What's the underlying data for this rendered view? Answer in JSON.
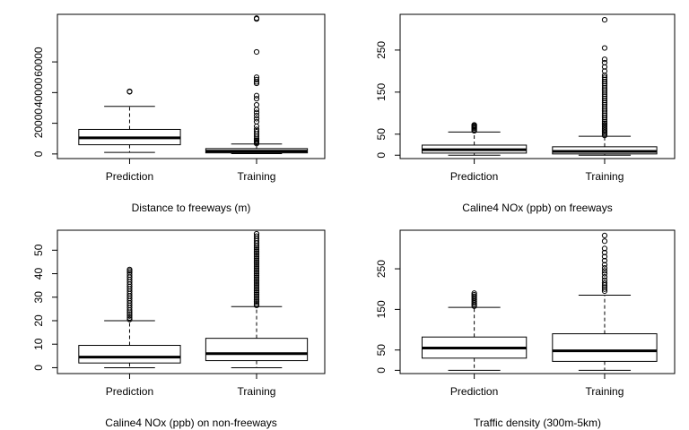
{
  "chart_data": [
    {
      "type": "boxplot",
      "xlabel": "Distance to freeways (m)",
      "categories": [
        "Prediction",
        "Training"
      ],
      "ylim": [
        -3000,
        91000
      ],
      "yticks": [
        0,
        20000,
        40000,
        60000
      ],
      "boxes": [
        {
          "whisker_low": 1000,
          "q1": 6000,
          "median": 10500,
          "q3": 16000,
          "whisker_high": 31000,
          "outliers": [
            40500,
            40800
          ]
        },
        {
          "whisker_low": 200,
          "q1": 700,
          "median": 1800,
          "q3": 3500,
          "whisker_high": 6500,
          "outliers": [
            6800,
            7500,
            8200,
            9000,
            10000,
            11500,
            13000,
            14500,
            16000,
            18000,
            21000,
            23000,
            25000,
            27000,
            29000,
            32000,
            36000,
            38000,
            46000,
            47000,
            48500,
            50000,
            66500,
            88000,
            88500
          ]
        }
      ]
    },
    {
      "type": "boxplot",
      "xlabel": "Caline4 NOx (ppb) on freeways",
      "categories": [
        "Prediction",
        "Training"
      ],
      "ylim": [
        -8,
        335
      ],
      "yticks": [
        0,
        50,
        150,
        250
      ],
      "boxes": [
        {
          "whisker_low": 0,
          "q1": 5,
          "median": 13,
          "q3": 24,
          "whisker_high": 55,
          "outliers": [
            58,
            61,
            64,
            66,
            68,
            70,
            72
          ]
        },
        {
          "whisker_low": 0,
          "q1": 3,
          "median": 9,
          "q3": 20,
          "whisker_high": 45,
          "outliers": [
            47,
            50,
            53,
            56,
            60,
            64,
            68,
            72,
            76,
            80,
            85,
            90,
            95,
            100,
            105,
            110,
            115,
            120,
            125,
            130,
            135,
            140,
            145,
            150,
            155,
            160,
            165,
            170,
            175,
            180,
            185,
            190,
            200,
            210,
            220,
            228,
            255,
            322
          ]
        }
      ]
    },
    {
      "type": "boxplot",
      "xlabel": "Caline4 NOx (ppb) on non-freeways",
      "categories": [
        "Prediction",
        "Training"
      ],
      "ylim": [
        -2.5,
        58.5
      ],
      "yticks": [
        0,
        10,
        20,
        30,
        40,
        50
      ],
      "boxes": [
        {
          "whisker_low": 0,
          "q1": 2,
          "median": 4.5,
          "q3": 9.5,
          "whisker_high": 20,
          "outliers": [
            20.5,
            21.2,
            22,
            22.8,
            23.6,
            24.5,
            25.5,
            26.5,
            27.5,
            28.5,
            29.5,
            30.5,
            31.5,
            32.5,
            33.5,
            34.5,
            35.5,
            36.5,
            37.5,
            38.5,
            39.5,
            40.5,
            41.2,
            41.8
          ]
        },
        {
          "whisker_low": 0,
          "q1": 3,
          "median": 6,
          "q3": 12.5,
          "whisker_high": 26,
          "outliers": [
            26.5,
            27.2,
            28,
            28.8,
            29.6,
            30.4,
            31.2,
            32,
            32.8,
            33.6,
            34.4,
            35.2,
            36,
            36.8,
            37.6,
            38.4,
            39.2,
            40,
            40.8,
            41.6,
            42.4,
            43.2,
            44,
            44.8,
            45.6,
            46.4,
            47.2,
            48,
            48.8,
            49.6,
            50.4,
            51.2,
            52,
            53,
            54,
            55,
            56,
            57
          ]
        }
      ]
    },
    {
      "type": "boxplot",
      "xlabel": "Traffic density (300m-5km)",
      "categories": [
        "Prediction",
        "Training"
      ],
      "ylim": [
        -8,
        345
      ],
      "yticks": [
        0,
        50,
        150,
        250
      ],
      "boxes": [
        {
          "whisker_low": 0,
          "q1": 30,
          "median": 55,
          "q3": 82,
          "whisker_high": 155,
          "outliers": [
            158,
            162,
            166,
            170,
            174,
            178,
            182,
            186,
            190
          ]
        },
        {
          "whisker_low": 0,
          "q1": 22,
          "median": 48,
          "q3": 90,
          "whisker_high": 185,
          "outliers": [
            195,
            200,
            205,
            210,
            215,
            222,
            230,
            238,
            245,
            252,
            260,
            270,
            280,
            290,
            300,
            318,
            332
          ]
        }
      ]
    }
  ]
}
